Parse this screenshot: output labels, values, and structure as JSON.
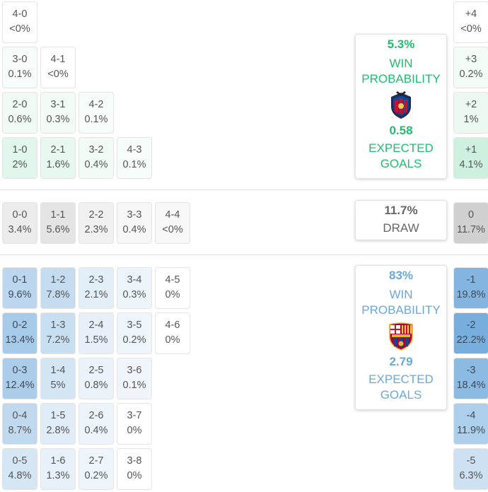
{
  "colors": {
    "home": "#1fbe6e",
    "away": "#6aa8d8",
    "draw": "#666666"
  },
  "home_grid": [
    {
      "score": "4-0",
      "prob": "<0%",
      "pct": 0
    },
    {
      "score": "3-0",
      "prob": "0.1%",
      "pct": 0.1
    },
    {
      "score": "4-1",
      "prob": "<0%",
      "pct": 0
    },
    {
      "score": "2-0",
      "prob": "0.6%",
      "pct": 0.6
    },
    {
      "score": "3-1",
      "prob": "0.3%",
      "pct": 0.3
    },
    {
      "score": "4-2",
      "prob": "0.1%",
      "pct": 0.1
    },
    {
      "score": "1-0",
      "prob": "2%",
      "pct": 2
    },
    {
      "score": "2-1",
      "prob": "1.6%",
      "pct": 1.6
    },
    {
      "score": "3-2",
      "prob": "0.4%",
      "pct": 0.4
    },
    {
      "score": "4-3",
      "prob": "0.1%",
      "pct": 0.1
    }
  ],
  "draw_row": [
    {
      "score": "0-0",
      "prob": "3.4%",
      "pct": 3.4
    },
    {
      "score": "1-1",
      "prob": "5.6%",
      "pct": 5.6
    },
    {
      "score": "2-2",
      "prob": "2.3%",
      "pct": 2.3
    },
    {
      "score": "3-3",
      "prob": "0.4%",
      "pct": 0.4
    },
    {
      "score": "4-4",
      "prob": "<0%",
      "pct": 0
    }
  ],
  "away_grid": [
    {
      "score": "0-1",
      "prob": "9.6%",
      "pct": 9.6
    },
    {
      "score": "1-2",
      "prob": "7.8%",
      "pct": 7.8
    },
    {
      "score": "2-3",
      "prob": "2.1%",
      "pct": 2.1
    },
    {
      "score": "3-4",
      "prob": "0.3%",
      "pct": 0.3
    },
    {
      "score": "4-5",
      "prob": "0%",
      "pct": 0
    },
    {
      "score": "0-2",
      "prob": "13.4%",
      "pct": 13.4
    },
    {
      "score": "1-3",
      "prob": "7.2%",
      "pct": 7.2
    },
    {
      "score": "2-4",
      "prob": "1.5%",
      "pct": 1.5
    },
    {
      "score": "3-5",
      "prob": "0.2%",
      "pct": 0.2
    },
    {
      "score": "4-6",
      "prob": "0%",
      "pct": 0
    },
    {
      "score": "0-3",
      "prob": "12.4%",
      "pct": 12.4
    },
    {
      "score": "1-4",
      "prob": "5%",
      "pct": 5
    },
    {
      "score": "2-5",
      "prob": "0.8%",
      "pct": 0.8
    },
    {
      "score": "3-6",
      "prob": "0.1%",
      "pct": 0.1
    },
    {
      "score": "0-4",
      "prob": "8.7%",
      "pct": 8.7
    },
    {
      "score": "1-5",
      "prob": "2.8%",
      "pct": 2.8
    },
    {
      "score": "2-6",
      "prob": "0.4%",
      "pct": 0.4
    },
    {
      "score": "3-7",
      "prob": "0%",
      "pct": 0
    },
    {
      "score": "0-5",
      "prob": "4.8%",
      "pct": 4.8
    },
    {
      "score": "1-6",
      "prob": "1.3%",
      "pct": 1.3
    },
    {
      "score": "2-7",
      "prob": "0.2%",
      "pct": 0.2
    },
    {
      "score": "3-8",
      "prob": "0%",
      "pct": 0
    }
  ],
  "home_margins": [
    {
      "margin": "+4",
      "prob": "<0%",
      "pct": 0
    },
    {
      "margin": "+3",
      "prob": "0.2%",
      "pct": 0.2
    },
    {
      "margin": "+2",
      "prob": "1%",
      "pct": 1
    },
    {
      "margin": "+1",
      "prob": "4.1%",
      "pct": 4.1
    }
  ],
  "draw_margin": {
    "margin": "0",
    "prob": "11.7%",
    "pct": 11.7
  },
  "away_margins": [
    {
      "margin": "-1",
      "prob": "19.8%",
      "pct": 19.8
    },
    {
      "margin": "-2",
      "prob": "22.2%",
      "pct": 22.2
    },
    {
      "margin": "-3",
      "prob": "18.4%",
      "pct": 18.4
    },
    {
      "margin": "-4",
      "prob": "11.9%",
      "pct": 11.9
    },
    {
      "margin": "-5",
      "prob": "6.3%",
      "pct": 6.3
    }
  ],
  "home_card": {
    "win_pct": "5.3%",
    "win_label_1": "WIN",
    "win_label_2": "PROBABILITY",
    "crest_icon": "levante-crest-icon",
    "xg": "0.58",
    "xg_label_1": "EXPECTED",
    "xg_label_2": "GOALS"
  },
  "draw_card": {
    "pct": "11.7%",
    "label": "DRAW"
  },
  "away_card": {
    "win_pct": "83%",
    "win_label_1": "WIN",
    "win_label_2": "PROBABILITY",
    "crest_icon": "barcelona-crest-icon",
    "xg": "2.79",
    "xg_label_1": "EXPECTED",
    "xg_label_2": "GOALS"
  }
}
